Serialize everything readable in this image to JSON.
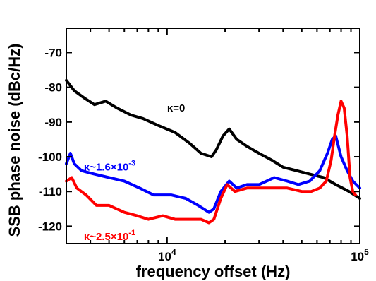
{
  "chart_data": {
    "type": "line",
    "xlabel": "frequency offset (Hz)",
    "ylabel": "SSB phase noise (dBc/Hz)",
    "xscale": "log",
    "xlim": [
      3000,
      100000
    ],
    "ylim": [
      -125,
      -63
    ],
    "x_ticks": [
      {
        "value": 10000,
        "base": "10",
        "exp": "4"
      },
      {
        "value": 100000,
        "base": "10",
        "exp": "5"
      }
    ],
    "y_ticks": [
      {
        "value": -70,
        "label": "-70"
      },
      {
        "value": -80,
        "label": "-80"
      },
      {
        "value": -90,
        "label": "-90"
      },
      {
        "value": -100,
        "label": "-100"
      },
      {
        "value": -110,
        "label": "-110"
      },
      {
        "value": -120,
        "label": "-120"
      }
    ],
    "grid": false,
    "series": [
      {
        "color": "#000000",
        "annotation": {
          "text": "κ=0",
          "pre": "κ=0",
          "sup": "",
          "at": [
            10000,
            -87
          ]
        },
        "points": [
          [
            3000,
            -78
          ],
          [
            3300,
            -81
          ],
          [
            3700,
            -83
          ],
          [
            4200,
            -85
          ],
          [
            4800,
            -84
          ],
          [
            5500,
            -86
          ],
          [
            6500,
            -88
          ],
          [
            7500,
            -89
          ],
          [
            9000,
            -91
          ],
          [
            11000,
            -93
          ],
          [
            13000,
            -96
          ],
          [
            15000,
            -99
          ],
          [
            17000,
            -100
          ],
          [
            18000,
            -98
          ],
          [
            19500,
            -94
          ],
          [
            21000,
            -92
          ],
          [
            23000,
            -95
          ],
          [
            26000,
            -97
          ],
          [
            30000,
            -99
          ],
          [
            35000,
            -101
          ],
          [
            40000,
            -103
          ],
          [
            47000,
            -104
          ],
          [
            55000,
            -105
          ],
          [
            65000,
            -106
          ],
          [
            75000,
            -108
          ],
          [
            88000,
            -110
          ],
          [
            100000,
            -112
          ]
        ]
      },
      {
        "color": "#0000ff",
        "annotation": {
          "text": "κ~1.6×10-3",
          "pre": "κ~1.6×10",
          "sup": "-3",
          "at": [
            3700,
            -104
          ]
        },
        "points": [
          [
            3000,
            -102
          ],
          [
            3150,
            -99
          ],
          [
            3300,
            -102
          ],
          [
            3600,
            -104
          ],
          [
            4200,
            -105
          ],
          [
            5000,
            -106
          ],
          [
            6000,
            -107
          ],
          [
            7200,
            -109
          ],
          [
            8500,
            -111
          ],
          [
            10500,
            -111
          ],
          [
            12500,
            -112
          ],
          [
            14500,
            -114
          ],
          [
            16500,
            -116
          ],
          [
            17500,
            -115
          ],
          [
            19000,
            -110
          ],
          [
            21000,
            -107
          ],
          [
            23000,
            -109
          ],
          [
            26000,
            -108
          ],
          [
            30000,
            -108
          ],
          [
            36000,
            -106
          ],
          [
            42000,
            -107
          ],
          [
            48000,
            -108
          ],
          [
            55000,
            -107
          ],
          [
            62000,
            -104
          ],
          [
            68000,
            -99
          ],
          [
            72000,
            -95
          ],
          [
            75000,
            -94
          ],
          [
            80000,
            -100
          ],
          [
            86000,
            -104
          ],
          [
            92000,
            -107
          ],
          [
            100000,
            -109
          ]
        ]
      },
      {
        "color": "#ff0000",
        "annotation": {
          "text": "κ~2.5×10-1",
          "pre": "κ~2.5×10",
          "sup": "-1",
          "at": [
            3700,
            -124
          ]
        },
        "points": [
          [
            3000,
            -107
          ],
          [
            3200,
            -106
          ],
          [
            3400,
            -109
          ],
          [
            3800,
            -111
          ],
          [
            4300,
            -114
          ],
          [
            5000,
            -114
          ],
          [
            6000,
            -116
          ],
          [
            7000,
            -117
          ],
          [
            8000,
            -118
          ],
          [
            9500,
            -117
          ],
          [
            11000,
            -118
          ],
          [
            13000,
            -118
          ],
          [
            15000,
            -118
          ],
          [
            16500,
            -119
          ],
          [
            17500,
            -118
          ],
          [
            19000,
            -112
          ],
          [
            20500,
            -108
          ],
          [
            22500,
            -110
          ],
          [
            26000,
            -109
          ],
          [
            30000,
            -109
          ],
          [
            35000,
            -109
          ],
          [
            42000,
            -109
          ],
          [
            50000,
            -110
          ],
          [
            56000,
            -110
          ],
          [
            62000,
            -109
          ],
          [
            67000,
            -107
          ],
          [
            71000,
            -101
          ],
          [
            74000,
            -94
          ],
          [
            77000,
            -88
          ],
          [
            80000,
            -84
          ],
          [
            83000,
            -86
          ],
          [
            86000,
            -94
          ],
          [
            89000,
            -106
          ],
          [
            92000,
            -110
          ],
          [
            95000,
            -111
          ]
        ]
      }
    ]
  }
}
